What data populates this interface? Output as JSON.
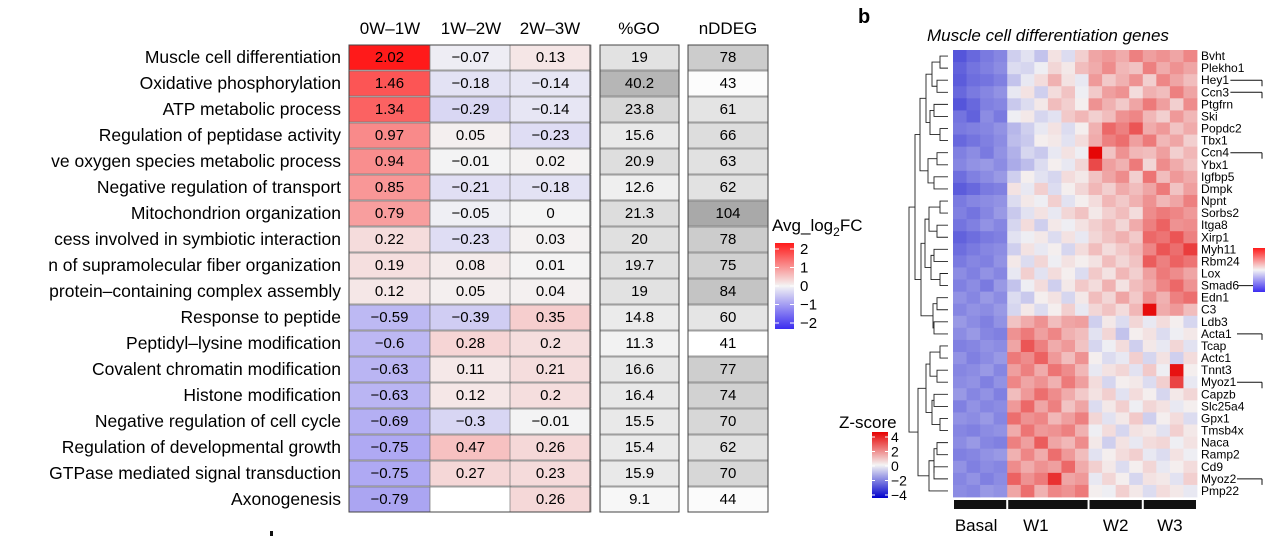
{
  "panel_b_letter": "b",
  "colorbar_a": {
    "title_main": "Avg_log",
    "title_sub": "2",
    "title_end": "FC"
  },
  "colorbar_b": {
    "title": "Z-score"
  },
  "chart_data": [
    {
      "type": "heatmap",
      "columns": [
        "0W–1W",
        "1W–2W",
        "2W–3W",
        "%GO",
        "nDDEG"
      ],
      "rows": [
        {
          "term": "Muscle cell differentiation",
          "fc": [
            2.02,
            -0.07,
            0.13
          ],
          "go": "19",
          "n": "78"
        },
        {
          "term": "Oxidative phosphorylation",
          "fc": [
            1.46,
            -0.18,
            -0.14
          ],
          "go": "40.2",
          "n": "43"
        },
        {
          "term": "ATP metabolic process",
          "fc": [
            1.34,
            -0.29,
            -0.14
          ],
          "go": "23.8",
          "n": "61"
        },
        {
          "term": "Regulation of peptidase activity",
          "fc": [
            0.97,
            0.05,
            -0.23
          ],
          "go": "15.6",
          "n": "66"
        },
        {
          "term": "ve oxygen species metabolic process",
          "fc": [
            0.94,
            -0.01,
            0.02
          ],
          "go": "20.9",
          "n": "63"
        },
        {
          "term": "Negative regulation of transport",
          "fc": [
            0.85,
            -0.21,
            -0.18
          ],
          "go": "12.6",
          "n": "62"
        },
        {
          "term": "Mitochondrion organization",
          "fc": [
            0.79,
            -0.05,
            0
          ],
          "go": "21.3",
          "n": "104"
        },
        {
          "term": "cess involved in symbiotic interaction",
          "fc": [
            0.22,
            -0.23,
            0.03
          ],
          "go": "20",
          "n": "78"
        },
        {
          "term": "n of supramolecular fiber organization",
          "fc": [
            0.19,
            0.08,
            0.01
          ],
          "go": "19.7",
          "n": "75"
        },
        {
          "term": "protein–containing complex assembly",
          "fc": [
            0.12,
            0.05,
            0.04
          ],
          "go": "19",
          "n": "84"
        },
        {
          "term": "Response to peptide",
          "fc": [
            -0.59,
            -0.39,
            0.35
          ],
          "go": "14.8",
          "n": "60"
        },
        {
          "term": "Peptidyl–lysine modification",
          "fc": [
            -0.6,
            0.28,
            0.2
          ],
          "go": "11.3",
          "n": "41"
        },
        {
          "term": "Covalent chromatin modification",
          "fc": [
            -0.63,
            0.11,
            0.21
          ],
          "go": "16.6",
          "n": "77"
        },
        {
          "term": "Histone modification",
          "fc": [
            -0.63,
            0.12,
            0.2
          ],
          "go": "16.4",
          "n": "74"
        },
        {
          "term": "Negative regulation of cell cycle",
          "fc": [
            -0.69,
            -0.3,
            -0.01
          ],
          "go": "15.5",
          "n": "70"
        },
        {
          "term": "Regulation of developmental growth",
          "fc": [
            -0.75,
            0.47,
            0.26
          ],
          "go": "15.4",
          "n": "62"
        },
        {
          "term": "GTPase mediated signal transduction",
          "fc": [
            -0.75,
            0.27,
            0.23
          ],
          "go": "15.9",
          "n": "70"
        },
        {
          "term": "Axonogenesis",
          "fc": [
            -0.79,
            null,
            0.26
          ],
          "go": "9.1",
          "n": "44"
        }
      ],
      "colorscale": {
        "min": -2,
        "max": 2,
        "ticks": [
          "2",
          "1",
          "0",
          "−1",
          "−2"
        ],
        "low": "#3b2cf0",
        "mid": "#f4f4f4",
        "high": "#ff1a1a"
      },
      "go_scale": {
        "min": 9,
        "max": 41,
        "low": "#f7f7f7",
        "high": "#b4b4b4"
      },
      "n_scale": {
        "min": 41,
        "max": 104,
        "low": "#ffffff",
        "high": "#a9a9a9"
      }
    },
    {
      "type": "heatmap",
      "title": "Muscle cell differentiation genes",
      "genes": [
        "Bvht",
        "Plekho1",
        "Hey1",
        "Ccn3",
        "Ptgfrn",
        "Ski",
        "Popdc2",
        "Tbx1",
        "Ccn4",
        "Ybx1",
        "Igfbp5",
        "Dmpk",
        "Npnt",
        "Sorbs2",
        "Itga8",
        "Xirp1",
        "Myh11",
        "Rbm24",
        "Lox",
        "Smad6",
        "Edn1",
        "C3",
        "Ldb3",
        "Acta1",
        "Tcap",
        "Actc1",
        "Tnnt3",
        "Myoz1",
        "Capzb",
        "Slc25a4",
        "Gpx1",
        "Tmsb4x",
        "Naca",
        "Ramp2",
        "Cd9",
        "Myoz2",
        "Pmp22"
      ],
      "marked_genes": [
        "Hey1",
        "Ccn3",
        "Ccn4",
        "Smad6",
        "Acta1",
        "Myoz1",
        "Myoz2"
      ],
      "groups": [
        {
          "label": "Basal",
          "samples": 4
        },
        {
          "label": "W1",
          "samples": 6
        },
        {
          "label": "W2",
          "samples": 4
        },
        {
          "label": "W3",
          "samples": 4
        }
      ],
      "zscale": {
        "min": -4,
        "max": 4,
        "ticks": [
          "4",
          "2",
          "0",
          "−2",
          "−4"
        ],
        "low": "#0000cc",
        "mid": "#f4f4f4",
        "high": "#e60000"
      },
      "values": [
        [
          -2.6,
          -2.3,
          -2.0,
          -1.8,
          -0.6,
          -0.3,
          -0.8,
          0.3,
          -0.4,
          0.6,
          1.3,
          1.5,
          1.2,
          1.9,
          1.4,
          1.6,
          1.3,
          1.8
        ],
        [
          -2.4,
          -2.1,
          -1.9,
          -1.7,
          -0.4,
          -0.5,
          -0.1,
          0.5,
          0.2,
          0.9,
          1.2,
          1.7,
          1.0,
          0.8,
          1.9,
          1.2,
          1.6,
          1.3
        ],
        [
          -2.5,
          -2.2,
          -2.1,
          -1.9,
          -0.8,
          -0.2,
          0.4,
          1.1,
          0.3,
          -0.2,
          1.5,
          0.7,
          1.1,
          1.6,
          0.6,
          1.8,
          1.3,
          0.9
        ],
        [
          -2.3,
          -2.0,
          -1.8,
          -1.6,
          -0.2,
          0.3,
          -0.6,
          0.4,
          0.8,
          -0.1,
          0.7,
          1.4,
          1.6,
          0.4,
          1.1,
          0.9,
          1.9,
          1.3
        ],
        [
          -2.6,
          -2.3,
          -1.9,
          -1.8,
          -0.7,
          -0.4,
          0.2,
          0.9,
          0.6,
          0.1,
          1.6,
          1.1,
          0.7,
          1.3,
          2.0,
          1.4,
          0.6,
          1.7
        ],
        [
          -2.1,
          -2.4,
          -1.7,
          -2.0,
          -0.1,
          0.2,
          -0.5,
          -0.3,
          0.7,
          1.0,
          0.6,
          0.9,
          1.6,
          1.8,
          1.0,
          0.6,
          1.5,
          1.0
        ],
        [
          -2.0,
          -1.9,
          -1.8,
          -1.6,
          -1.0,
          -0.6,
          -0.2,
          0.3,
          -0.4,
          0.1,
          1.1,
          2.3,
          1.9,
          2.6,
          1.2,
          1.5,
          0.8,
          1.2
        ],
        [
          -2.3,
          -2.1,
          -1.9,
          -1.7,
          -0.9,
          -0.7,
          0.1,
          0.2,
          -0.3,
          0.4,
          1.2,
          1.9,
          2.2,
          1.4,
          2.0,
          1.0,
          1.3,
          0.6
        ],
        [
          -1.9,
          -1.7,
          -2.0,
          -1.6,
          -1.1,
          -0.5,
          -0.7,
          -0.2,
          0.3,
          -0.1,
          3.9,
          0.8,
          1.6,
          1.0,
          0.9,
          1.4,
          0.6,
          1.0
        ],
        [
          -1.8,
          -1.6,
          -1.5,
          -1.7,
          -1.2,
          -0.9,
          -0.4,
          0.1,
          -0.2,
          0.5,
          2.8,
          1.4,
          1.1,
          2.0,
          0.5,
          1.7,
          1.2,
          0.8
        ],
        [
          -2.2,
          -1.9,
          -1.7,
          -1.5,
          -0.6,
          0.1,
          -0.3,
          -0.5,
          0.4,
          0.2,
          0.8,
          1.3,
          1.7,
          0.6,
          2.1,
          0.9,
          1.5,
          1.2
        ],
        [
          -2.5,
          -2.3,
          -2.0,
          -1.9,
          0.3,
          -0.2,
          0.6,
          -0.4,
          0.1,
          0.5,
          1.0,
          0.6,
          1.2,
          0.9,
          1.3,
          2.0,
          0.8,
          1.4
        ],
        [
          -2.0,
          -1.8,
          -1.7,
          -1.6,
          -0.4,
          0.2,
          -0.1,
          0.6,
          -0.3,
          0.1,
          0.4,
          1.0,
          0.7,
          1.1,
          1.6,
          1.0,
          1.3,
          1.9
        ],
        [
          -1.9,
          -2.1,
          -1.8,
          -1.5,
          -0.7,
          -0.3,
          0.3,
          -0.2,
          0.5,
          0.8,
          0.2,
          0.6,
          0.9,
          0.4,
          1.7,
          2.0,
          1.8,
          1.5
        ],
        [
          -2.1,
          -1.9,
          -1.6,
          -1.8,
          -0.5,
          0.4,
          -0.6,
          0.2,
          -0.1,
          0.3,
          0.6,
          0.9,
          0.5,
          1.2,
          1.9,
          2.4,
          1.6,
          1.7
        ],
        [
          -2.4,
          -2.2,
          -2.0,
          -1.9,
          -0.3,
          -0.1,
          0.2,
          -0.4,
          0.3,
          -0.2,
          0.5,
          0.8,
          1.1,
          0.7,
          2.3,
          2.1,
          2.6,
          1.9
        ],
        [
          -2.2,
          -2.0,
          -1.8,
          -1.7,
          -0.6,
          0.3,
          -0.2,
          0.1,
          -0.5,
          0.4,
          0.9,
          0.4,
          0.7,
          1.0,
          1.8,
          2.6,
          2.2,
          3.0
        ],
        [
          -2.0,
          -1.8,
          -1.9,
          -1.6,
          0.2,
          -0.4,
          0.5,
          -0.1,
          0.3,
          0.1,
          0.3,
          0.9,
          0.5,
          0.8,
          2.5,
          1.9,
          2.4,
          2.1
        ],
        [
          -1.7,
          -1.9,
          -1.6,
          -1.8,
          -0.2,
          0.6,
          -0.3,
          0.4,
          0.1,
          -0.4,
          0.7,
          0.3,
          1.0,
          0.6,
          1.4,
          2.0,
          1.7,
          1.3
        ],
        [
          -1.9,
          -1.7,
          -2.0,
          -1.5,
          -0.8,
          -0.1,
          0.4,
          -0.6,
          0.2,
          0.7,
          0.4,
          1.1,
          0.3,
          0.9,
          1.2,
          1.8,
          2.3,
          1.6
        ],
        [
          -1.6,
          -1.8,
          -1.5,
          -1.7,
          -0.4,
          -0.7,
          0.1,
          0.3,
          -0.5,
          0.2,
          0.9,
          0.5,
          1.3,
          0.7,
          1.6,
          1.1,
          1.9,
          2.2
        ],
        [
          -1.8,
          -1.6,
          -1.7,
          -1.5,
          -0.5,
          0.2,
          -0.4,
          0.1,
          0.6,
          -0.2,
          0.5,
          0.8,
          0.4,
          1.0,
          3.8,
          1.2,
          1.5,
          0.9
        ],
        [
          -1.5,
          -1.7,
          -1.9,
          -1.6,
          0.8,
          1.2,
          1.6,
          0.9,
          1.3,
          1.4,
          -0.6,
          0.2,
          -0.4,
          0.5,
          -0.2,
          0.4,
          0.1,
          -0.5
        ],
        [
          -1.7,
          -1.5,
          -1.8,
          -1.9,
          1.6,
          2.0,
          1.4,
          1.8,
          1.1,
          0.9,
          -0.3,
          0.5,
          -0.8,
          0.1,
          0.3,
          -0.4,
          -0.1,
          0.2
        ],
        [
          -1.9,
          -1.8,
          -1.6,
          -1.7,
          1.3,
          2.6,
          1.9,
          1.2,
          1.5,
          0.8,
          -0.5,
          -0.1,
          0.4,
          -0.6,
          0.2,
          -0.2,
          0.5,
          -0.3
        ],
        [
          -1.6,
          -1.9,
          -1.7,
          -1.5,
          2.0,
          1.7,
          2.4,
          1.5,
          0.9,
          1.6,
          0.1,
          -0.4,
          -0.2,
          0.6,
          -0.5,
          0.3,
          -0.6,
          0.4
        ],
        [
          -1.8,
          -1.7,
          -1.5,
          -1.8,
          1.4,
          1.9,
          1.2,
          2.1,
          1.7,
          1.0,
          -0.2,
          0.3,
          0.5,
          -0.3,
          0.7,
          -0.1,
          3.7,
          0.1
        ],
        [
          -1.7,
          -1.6,
          -1.9,
          -1.6,
          1.8,
          1.3,
          1.6,
          1.1,
          2.0,
          1.4,
          0.4,
          -0.5,
          0.1,
          0.2,
          -0.4,
          0.6,
          2.9,
          -0.2
        ],
        [
          -1.5,
          -1.8,
          -1.6,
          -1.9,
          0.9,
          1.5,
          2.2,
          1.7,
          1.2,
          0.7,
          0.3,
          0.6,
          -0.3,
          0.4,
          0.1,
          -0.5,
          0.2,
          0.5
        ],
        [
          -1.9,
          -1.6,
          -1.8,
          -1.7,
          1.5,
          2.3,
          1.3,
          1.9,
          0.8,
          1.3,
          -0.4,
          0.2,
          0.6,
          -0.1,
          0.5,
          0.3,
          -0.2,
          0.1
        ],
        [
          -1.6,
          -1.7,
          -1.5,
          -1.8,
          2.2,
          1.6,
          1.8,
          1.0,
          1.4,
          1.9,
          0.5,
          -0.3,
          0.2,
          0.7,
          -0.6,
          0.1,
          0.4,
          -0.4
        ],
        [
          -1.8,
          -1.9,
          -1.7,
          -1.6,
          1.2,
          2.1,
          1.5,
          1.6,
          1.9,
          1.1,
          -0.1,
          0.4,
          -0.5,
          0.3,
          0.2,
          -0.3,
          0.6,
          0.2
        ],
        [
          -1.7,
          -1.5,
          -1.8,
          -1.9,
          1.9,
          1.4,
          2.5,
          1.3,
          1.0,
          1.7,
          0.2,
          -0.6,
          0.3,
          -0.2,
          0.4,
          0.5,
          -0.1,
          0.3
        ],
        [
          -1.9,
          -1.8,
          -1.6,
          -1.5,
          1.1,
          1.8,
          1.2,
          2.2,
          1.5,
          0.9,
          -0.3,
          0.1,
          0.4,
          0.6,
          -0.2,
          -0.4,
          0.3,
          -0.1
        ],
        [
          -1.6,
          -1.9,
          -1.7,
          -1.8,
          1.7,
          1.2,
          1.6,
          1.4,
          2.3,
          1.2,
          0.6,
          0.2,
          -0.4,
          0.1,
          0.5,
          -0.2,
          0.1,
          0.4
        ],
        [
          -1.8,
          -1.6,
          -1.9,
          -1.7,
          2.4,
          1.6,
          2.0,
          3.2,
          1.3,
          1.5,
          -0.2,
          0.5,
          0.1,
          -0.5,
          0.3,
          0.2,
          -0.3,
          0.6
        ],
        [
          -1.7,
          -1.8,
          -1.5,
          -1.6,
          1.3,
          2.2,
          1.1,
          1.8,
          1.6,
          2.0,
          0.1,
          -0.1,
          0.6,
          0.2,
          -0.4,
          0.4,
          0.2,
          -0.2
        ]
      ]
    }
  ]
}
